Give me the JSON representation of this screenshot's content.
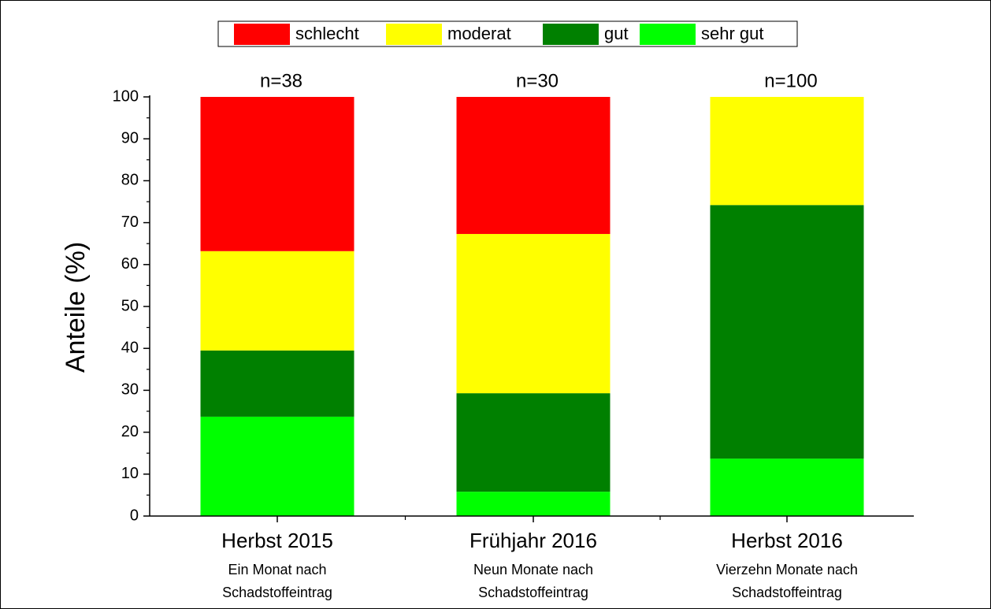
{
  "chart_data": {
    "type": "stacked_bar",
    "ylabel": "Anteile (%)",
    "categories": [
      "Herbst 2015",
      "Frühjahr 2016",
      "Herbst 2016"
    ],
    "sublabels": [
      [
        "Ein Monat nach",
        "Schadstoffeintrag"
      ],
      [
        "Neun Monate nach",
        "Schadstoffeintrag"
      ],
      [
        "Vierzehn Monate nach",
        "Schadstoffeintrag"
      ]
    ],
    "annotations": [
      "n=38",
      "n=30",
      "n=100"
    ],
    "series": [
      {
        "name": "sehr gut",
        "color": "#00ff00",
        "values": [
          23.7,
          5.8,
          13.7
        ]
      },
      {
        "name": "gut",
        "color": "#008000",
        "values": [
          15.8,
          23.5,
          60.5
        ]
      },
      {
        "name": "moderat",
        "color": "#ffff00",
        "values": [
          23.7,
          38.0,
          25.8
        ]
      },
      {
        "name": "schlecht",
        "color": "#ff0000",
        "values": [
          36.8,
          32.7,
          0
        ]
      }
    ],
    "legend_order": [
      "schlecht",
      "moderat",
      "gut",
      "sehr gut"
    ],
    "ylim": [
      0,
      100
    ],
    "yticks": [
      0,
      10,
      20,
      30,
      40,
      50,
      60,
      70,
      80,
      90,
      100
    ]
  }
}
